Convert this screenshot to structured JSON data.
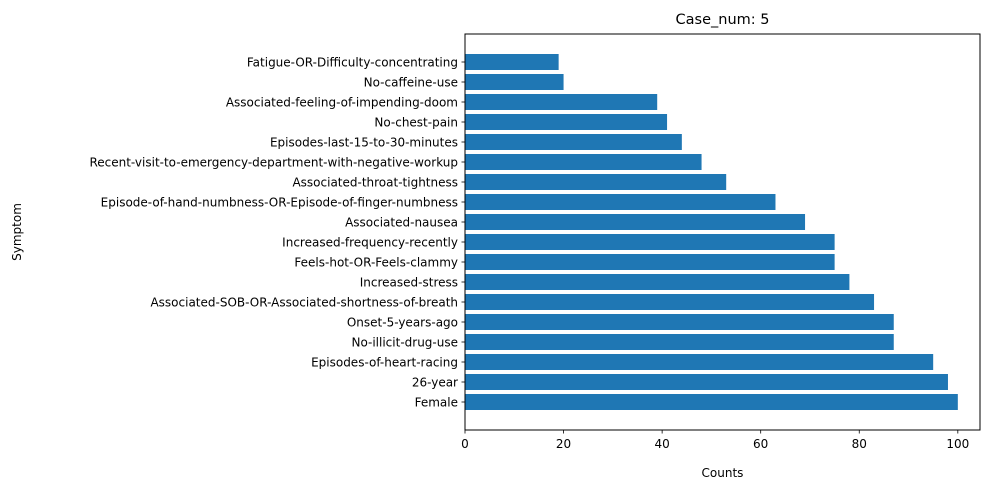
{
  "chart_data": {
    "type": "bar",
    "orientation": "horizontal",
    "title": "Case_num: 5",
    "xlabel": "Counts",
    "ylabel": "Symptom",
    "xlim": [
      0,
      104.5
    ],
    "xticks": [
      0,
      20,
      40,
      60,
      80,
      100
    ],
    "grid": false,
    "color": "#1f77b4",
    "categories": [
      "Female",
      "26-year",
      "Episodes-of-heart-racing",
      "No-illicit-drug-use",
      "Onset-5-years-ago",
      "Associated-SOB-OR-Associated-shortness-of-breath",
      "Increased-stress",
      "Feels-hot-OR-Feels-clammy",
      "Increased-frequency-recently",
      "Associated-nausea",
      "Episode-of-hand-numbness-OR-Episode-of-finger-numbness",
      "Associated-throat-tightness",
      "Recent-visit-to-emergency-department-with-negative-workup",
      "Episodes-last-15-to-30-minutes",
      "No-chest-pain",
      "Associated-feeling-of-impending-doom",
      "No-caffeine-use",
      "Fatigue-OR-Difficulty-concentrating"
    ],
    "values": [
      100,
      98,
      95,
      87,
      87,
      83,
      78,
      75,
      75,
      69,
      63,
      53,
      48,
      44,
      41,
      39,
      20,
      19
    ]
  }
}
